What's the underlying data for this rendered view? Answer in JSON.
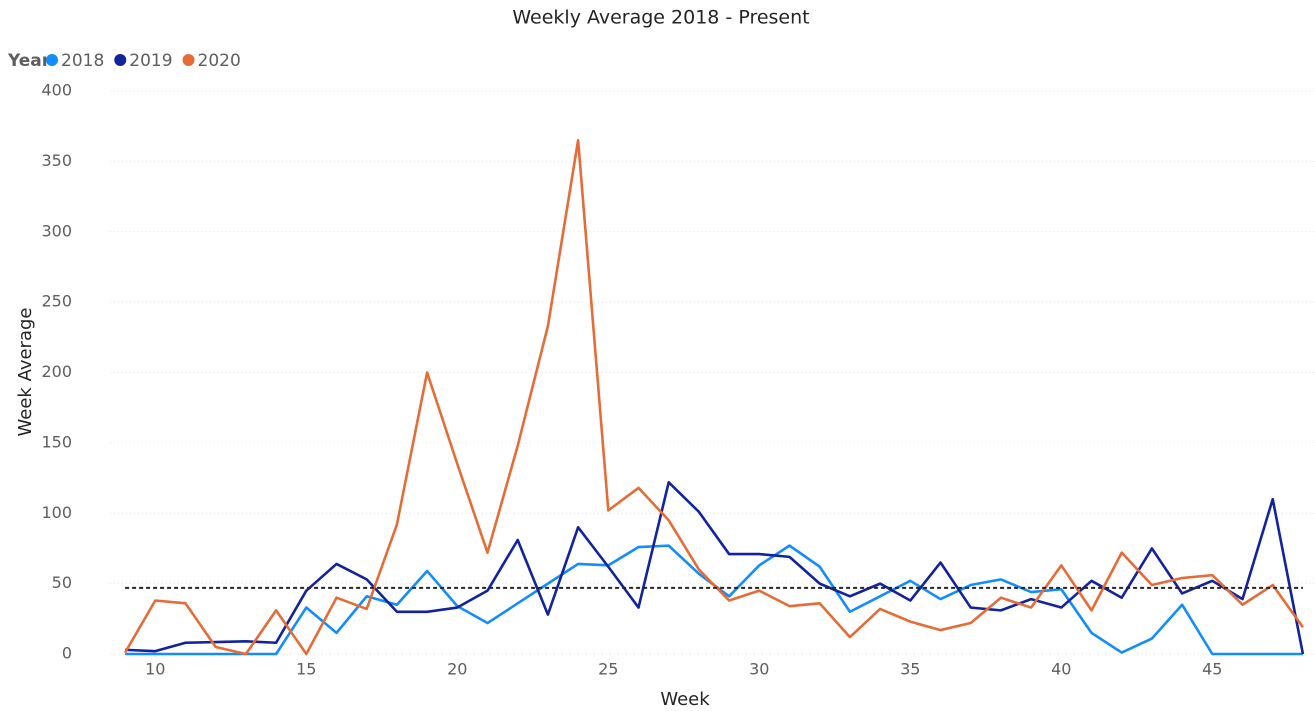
{
  "chart_data": {
    "type": "line",
    "title": "Weekly Average 2018 - Present",
    "x_label": "Week",
    "y_label": "Week Average",
    "legend_title": "Year",
    "legend_position": "top-left",
    "x": [
      9,
      10,
      11,
      12,
      13,
      14,
      15,
      16,
      17,
      18,
      19,
      20,
      21,
      22,
      23,
      24,
      25,
      26,
      27,
      28,
      29,
      30,
      31,
      32,
      33,
      34,
      35,
      36,
      37,
      38,
      39,
      40,
      41,
      42,
      43,
      44,
      45,
      46,
      47,
      48
    ],
    "series": [
      {
        "name": "2018",
        "color": "#118DFF",
        "values": [
          0,
          0,
          0,
          0,
          0,
          0,
          33,
          15,
          41,
          35,
          59,
          34,
          22,
          36,
          50,
          64,
          63,
          76,
          77,
          57,
          41,
          63,
          77,
          62,
          30,
          41,
          52,
          39,
          49,
          53,
          44,
          46,
          15,
          1,
          11,
          35,
          0,
          0,
          0,
          0
        ]
      },
      {
        "name": "2019",
        "color": "#12239E",
        "values": [
          3,
          2,
          8,
          8.5,
          9,
          8,
          45,
          64,
          53,
          30,
          30,
          33,
          45,
          81,
          28,
          90,
          62,
          33,
          122,
          101,
          71,
          71,
          69,
          50,
          41,
          50,
          38,
          65,
          33,
          31,
          39,
          33,
          52,
          40,
          75,
          43,
          52,
          39,
          110,
          0
        ]
      },
      {
        "name": "2020",
        "color": "#E66C37",
        "values": [
          1,
          38,
          36,
          5,
          0,
          31,
          0,
          40,
          32,
          92,
          200,
          135,
          72,
          148,
          233,
          365,
          102,
          118,
          95,
          60,
          38,
          45,
          34,
          36,
          12,
          32,
          23,
          17,
          22,
          40,
          33,
          63,
          31,
          72,
          49,
          54,
          56,
          35,
          49,
          19
        ]
      }
    ],
    "reference_line": 47,
    "xlim": [
      8.5,
      48.4
    ],
    "xticks": [
      10,
      15,
      20,
      25,
      30,
      35,
      40,
      45
    ],
    "ylim": [
      0,
      400
    ],
    "yticks": [
      0,
      50,
      100,
      150,
      200,
      250,
      300,
      350,
      400
    ],
    "grid": true
  }
}
